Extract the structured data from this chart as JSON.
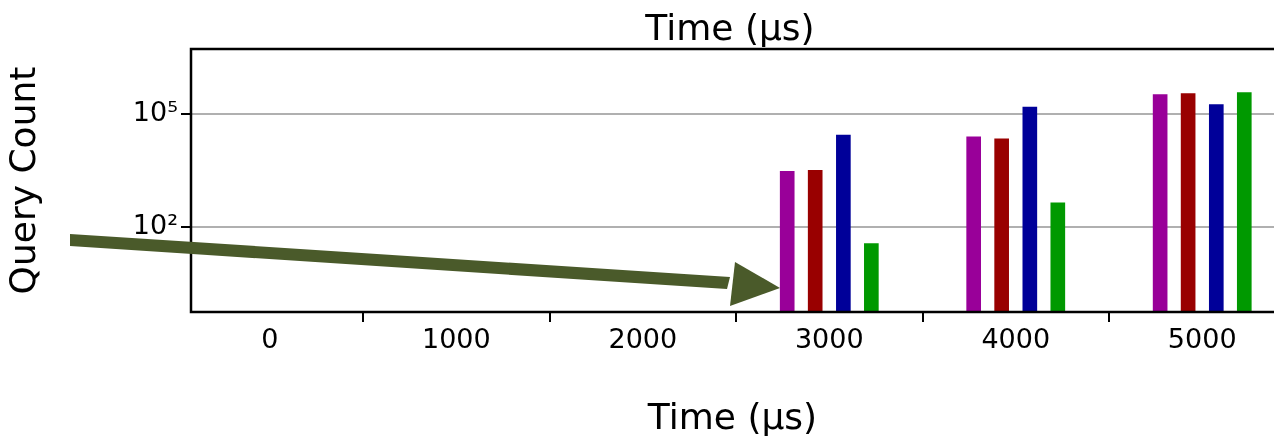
{
  "chart_data": {
    "type": "bar",
    "xlabel": "Time (µs)",
    "ylabel": "Query Count",
    "annotations": [
      "Time (µs)"
    ],
    "series": [
      {
        "color": "#990099",
        "x": [
          2887,
          3887,
          4887
        ],
        "values": [
          3000,
          25000,
          330000
        ]
      },
      {
        "color": "#990000",
        "x": [
          2962,
          3962,
          4962
        ],
        "values": [
          3200,
          22000,
          355000
        ]
      },
      {
        "color": "#000099",
        "x": [
          3038,
          4038,
          5038
        ],
        "values": [
          28000,
          155000,
          180000
        ]
      },
      {
        "color": "#009900",
        "x": [
          3113,
          4113,
          5113
        ],
        "values": [
          36,
          440,
          375000
        ]
      }
    ],
    "log": "y",
    "xlim": [
      -423,
      5385
    ],
    "xticks": [
      0,
      1000,
      2000,
      3000,
      4000,
      5000
    ],
    "ylim": [
      0.55,
      5400000
    ],
    "yticks": [
      {
        "value": 100,
        "label": "10²"
      },
      {
        "value": 100000,
        "label": "10⁵"
      }
    ],
    "grid": "y",
    "legend": false
  }
}
